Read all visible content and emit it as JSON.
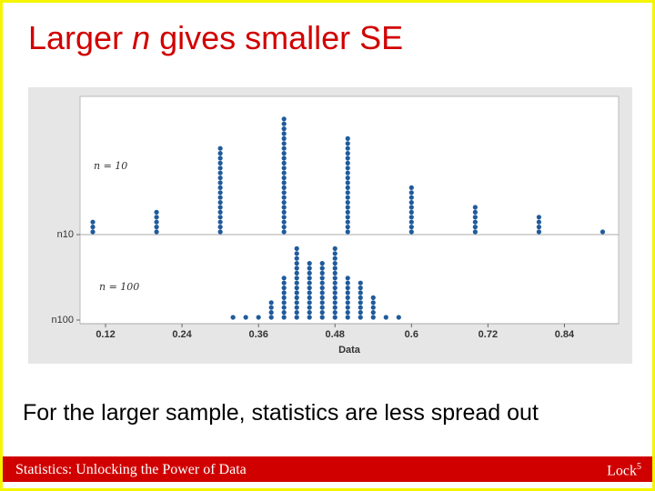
{
  "slide": {
    "title": [
      "Larger ",
      "n",
      " gives smaller SE"
    ],
    "caption": "For the larger sample, statistics are less spread out",
    "footer_left": "Statistics: Unlocking the Power of Data",
    "footer_right": "Lock",
    "footer_sup": "5"
  },
  "chart_data": {
    "type": "dotplot",
    "x_label": "Data",
    "xlim": [
      0.08,
      0.925
    ],
    "xticks": [
      0.12,
      0.24,
      0.36,
      0.48,
      0.6,
      0.72,
      0.84
    ],
    "series": [
      {
        "name": "n10",
        "annotation": "n = 10",
        "color": "#1f5b9c",
        "x": [
          0.1,
          0.2,
          0.3,
          0.4,
          0.5,
          0.6,
          0.7,
          0.8,
          0.9
        ],
        "values": [
          3,
          5,
          18,
          24,
          20,
          10,
          6,
          4,
          1
        ]
      },
      {
        "name": "n100",
        "annotation": "n = 100",
        "color": "#1f5b9c",
        "x": [
          0.32,
          0.34,
          0.36,
          0.38,
          0.4,
          0.42,
          0.44,
          0.46,
          0.48,
          0.5,
          0.52,
          0.54,
          0.56,
          0.58
        ],
        "values": [
          1,
          1,
          1,
          4,
          9,
          15,
          12,
          12,
          15,
          9,
          8,
          5,
          1,
          1
        ]
      }
    ]
  }
}
